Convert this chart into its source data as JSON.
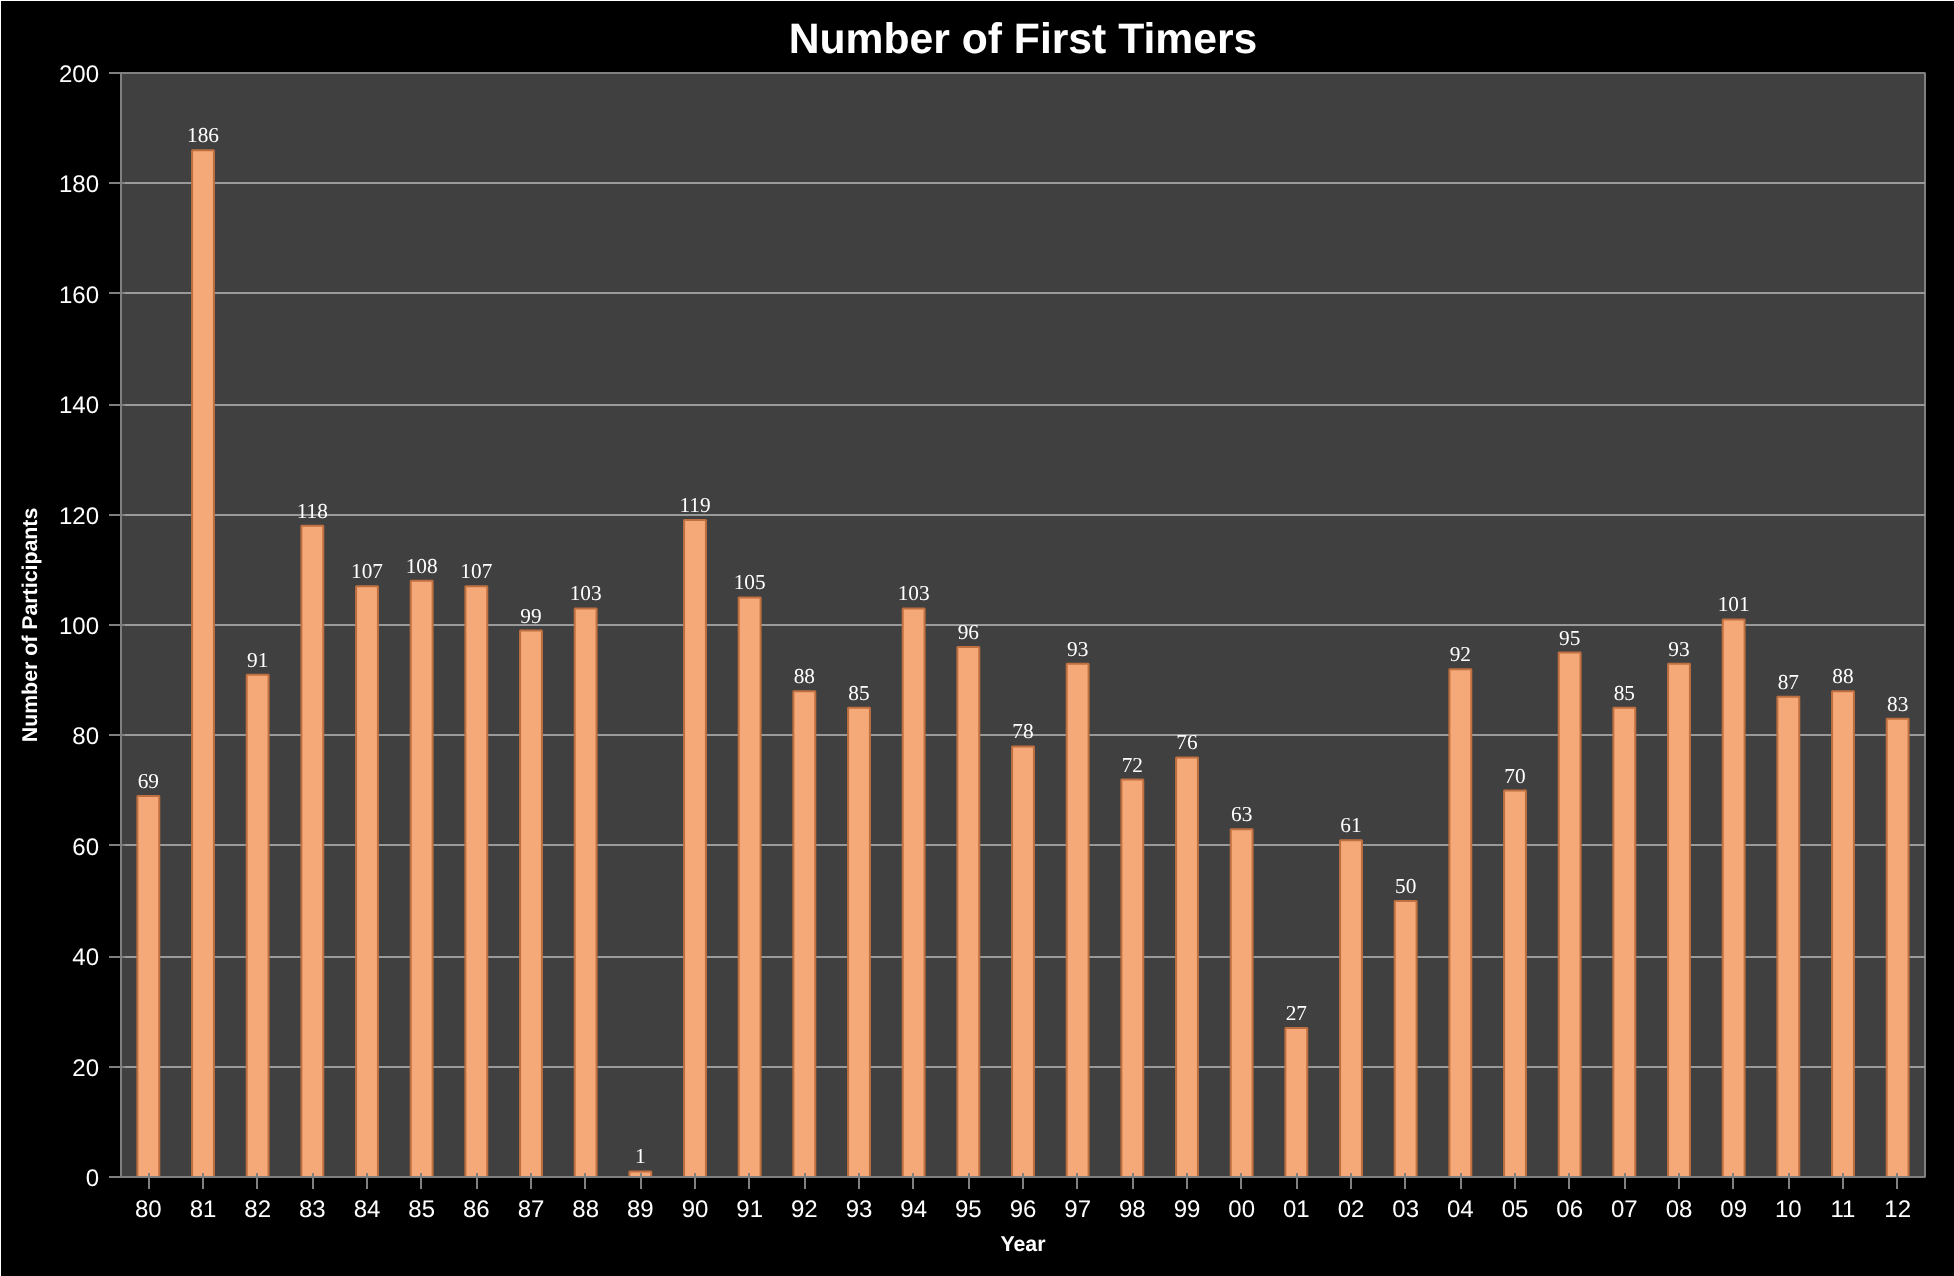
{
  "chart_data": {
    "type": "bar",
    "title": "Number of First Timers",
    "xlabel": "Year",
    "ylabel": "Number of Participants",
    "categories": [
      "80",
      "81",
      "82",
      "83",
      "84",
      "85",
      "86",
      "87",
      "88",
      "89",
      "90",
      "91",
      "92",
      "93",
      "94",
      "95",
      "96",
      "97",
      "98",
      "99",
      "00",
      "01",
      "02",
      "03",
      "04",
      "05",
      "06",
      "07",
      "08",
      "09",
      "10",
      "11",
      "12"
    ],
    "values": [
      69,
      186,
      91,
      118,
      107,
      108,
      107,
      99,
      103,
      1,
      119,
      105,
      88,
      85,
      103,
      96,
      78,
      93,
      72,
      76,
      63,
      27,
      61,
      50,
      92,
      70,
      95,
      85,
      93,
      101,
      87,
      88,
      83
    ],
    "color": "#f5a878",
    "ylim": [
      0,
      200
    ],
    "yticks": [
      0,
      20,
      40,
      60,
      80,
      100,
      120,
      140,
      160,
      180,
      200
    ],
    "grid": "y",
    "data_labels": true
  }
}
